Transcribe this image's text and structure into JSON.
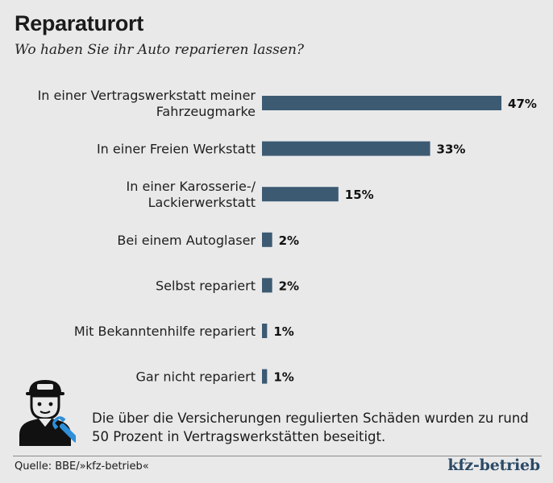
{
  "header": {
    "title": "Reparaturort",
    "subtitle": "Wo haben Sie ihr Auto reparieren lassen?"
  },
  "chart_data": {
    "type": "bar",
    "orientation": "horizontal",
    "categories": [
      [
        "In einer Vertragswerkstatt meiner",
        "Fahrzeugmarke"
      ],
      [
        "In einer Freien Werkstatt"
      ],
      [
        "In einer Karosserie-/",
        "Lackierwerkstatt"
      ],
      [
        "Bei einem Autoglaser"
      ],
      [
        "Selbst repariert"
      ],
      [
        "Mit Bekanntenhilfe repariert"
      ],
      [
        "Gar nicht repariert"
      ]
    ],
    "values": [
      47,
      33,
      15,
      2,
      2,
      1,
      1
    ],
    "value_labels": [
      "47%",
      "33%",
      "15%",
      "2%",
      "2%",
      "1%",
      "1%"
    ],
    "unit": "%",
    "bar_color": "#3c5a72",
    "grid": false,
    "legend": "none"
  },
  "footer": {
    "note": "Die über die Versicherungen regulierten Schäden wurden zu rund 50 Prozent in Vertragswerkstätten beseitigt.",
    "source": "Quelle: BBE/»kfz-betrieb«",
    "brand": "kfz-betrieb"
  },
  "icons": {
    "mechanic": "mechanic-with-wrench-icon"
  }
}
